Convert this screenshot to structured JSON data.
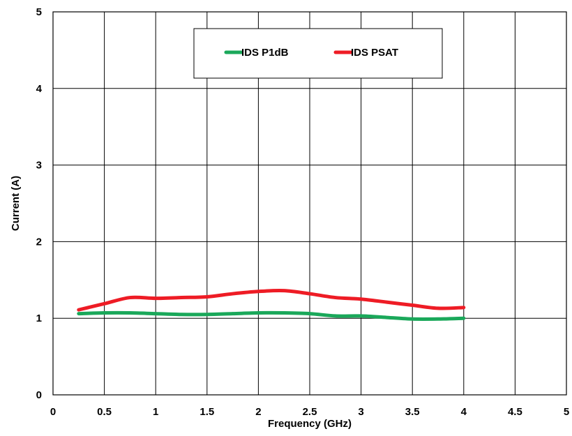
{
  "chart_data": {
    "type": "line",
    "xlabel": "Frequency (GHz)",
    "ylabel": "Current (A)",
    "xlim": [
      0,
      5
    ],
    "ylim": [
      0,
      5
    ],
    "x_ticks": [
      "0",
      "0.5",
      "1",
      "1.5",
      "2",
      "2.5",
      "3",
      "3.5",
      "4",
      "4.5",
      "5"
    ],
    "y_ticks": [
      "0",
      "1",
      "2",
      "3",
      "4",
      "5"
    ],
    "grid": true,
    "legend_position": "top-center",
    "series": [
      {
        "name": "IDS P1dB",
        "color": "#1aa85a",
        "x": [
          0.25,
          0.5,
          0.75,
          1.0,
          1.25,
          1.5,
          1.75,
          2.0,
          2.25,
          2.5,
          2.75,
          3.0,
          3.25,
          3.5,
          3.75,
          4.0
        ],
        "y": [
          1.06,
          1.07,
          1.07,
          1.06,
          1.05,
          1.05,
          1.06,
          1.07,
          1.07,
          1.06,
          1.03,
          1.03,
          1.01,
          0.99,
          0.99,
          1.0
        ]
      },
      {
        "name": "IDS PSAT",
        "color": "#ee1c25",
        "x": [
          0.25,
          0.5,
          0.75,
          1.0,
          1.25,
          1.5,
          1.75,
          2.0,
          2.25,
          2.5,
          2.75,
          3.0,
          3.25,
          3.5,
          3.75,
          4.0
        ],
        "y": [
          1.11,
          1.19,
          1.27,
          1.26,
          1.27,
          1.28,
          1.32,
          1.35,
          1.36,
          1.32,
          1.27,
          1.25,
          1.21,
          1.17,
          1.13,
          1.14
        ]
      }
    ]
  }
}
